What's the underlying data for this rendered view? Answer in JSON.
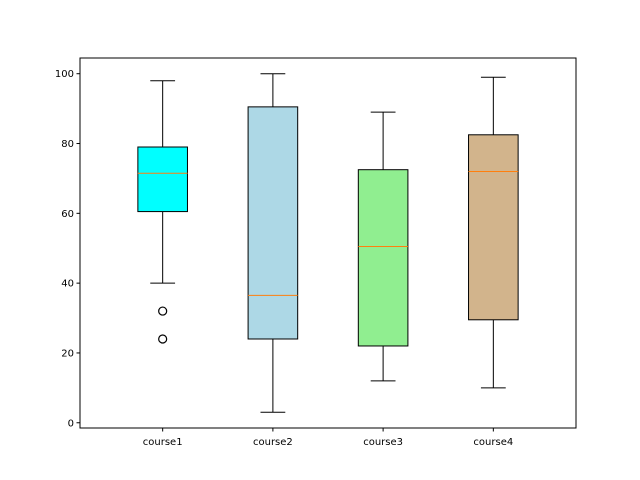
{
  "chart_data": {
    "type": "box",
    "categories": [
      "course1",
      "course2",
      "course3",
      "course4"
    ],
    "y_ticks": [
      0,
      20,
      40,
      60,
      80,
      100
    ],
    "ylim": [
      -1.5,
      104.5
    ],
    "grid": false,
    "median_color": "#ff7f0e",
    "boxes": [
      {
        "label": "course1",
        "fill": "#00ffff",
        "whisker_low": 40,
        "q1": 60.5,
        "median": 71.5,
        "q3": 79,
        "whisker_high": 98,
        "outliers": [
          32,
          24
        ]
      },
      {
        "label": "course2",
        "fill": "#add8e6",
        "whisker_low": 3,
        "q1": 24,
        "median": 36.5,
        "q3": 90.5,
        "whisker_high": 100,
        "outliers": []
      },
      {
        "label": "course3",
        "fill": "#90ee90",
        "whisker_low": 12,
        "q1": 22,
        "median": 50.5,
        "q3": 72.5,
        "whisker_high": 89,
        "outliers": []
      },
      {
        "label": "course4",
        "fill": "#d2b48c",
        "whisker_low": 10,
        "q1": 29.5,
        "median": 72,
        "q3": 82.5,
        "whisker_high": 99,
        "outliers": []
      }
    ]
  }
}
